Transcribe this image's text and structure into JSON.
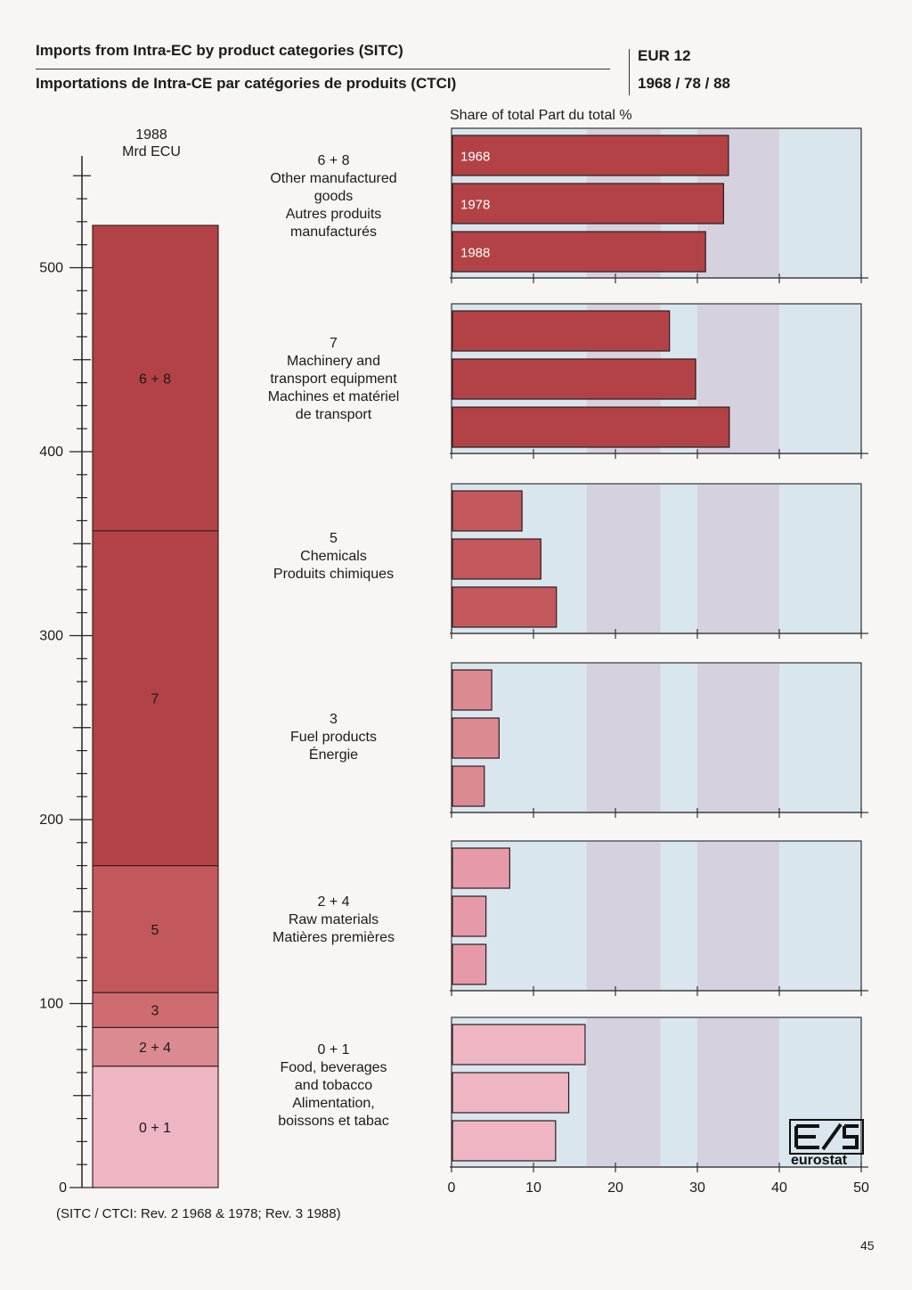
{
  "title_en": "Imports from Intra-EC by product categories (SITC)",
  "title_fr": "Importations de Intra-CE par catégories de produits (CTCI)",
  "region": "EUR 12",
  "period": "1968 / 78 / 88",
  "share_header": "Share of total  Part du total  %",
  "source_note": "(SITC / CTCI: Rev. 2  1968 & 1978; Rev. 3 1988)",
  "page_number": "45",
  "logo_text": "eurostat",
  "categories": [
    {
      "code": "6 + 8",
      "label_lines": [
        "Other manufactured",
        "goods",
        "Autres produits",
        "manufacturés"
      ]
    },
    {
      "code": "7",
      "label_lines": [
        "Machinery and",
        "transport equipment",
        "Machines et matériel",
        "de transport"
      ]
    },
    {
      "code": "5",
      "label_lines": [
        "Chemicals",
        "Produits chimiques"
      ]
    },
    {
      "code": "3",
      "label_lines": [
        "Fuel products",
        "Énergie"
      ]
    },
    {
      "code": "2 + 4",
      "label_lines": [
        "Raw materials",
        "Matières premières"
      ]
    },
    {
      "code": "0 + 1",
      "label_lines": [
        "Food, beverages",
        "and tobacco",
        "Alimentation,",
        "boissons et tabac"
      ]
    }
  ],
  "chart_data": [
    {
      "type": "bar",
      "stacked": true,
      "orientation": "vertical",
      "title": "1988",
      "ylabel": "Mrd ECU",
      "ylim": [
        0,
        600
      ],
      "yticks": [
        0,
        100,
        200,
        300,
        400,
        500
      ],
      "segments": [
        {
          "label": "0 + 1",
          "value": 66
        },
        {
          "label": "2 + 4",
          "value": 21
        },
        {
          "label": "3",
          "value": 19
        },
        {
          "label": "5",
          "value": 69
        },
        {
          "label": "7",
          "value": 182
        },
        {
          "label": "6 + 8",
          "value": 166
        }
      ]
    },
    {
      "type": "bar",
      "orientation": "horizontal",
      "xlabel": "Share of total  Part du total  %",
      "xlim": [
        0,
        50
      ],
      "xticks": [
        0,
        10,
        20,
        30,
        40,
        50
      ],
      "groups": [
        "6 + 8",
        "7",
        "5",
        "3",
        "2 + 4",
        "0 + 1"
      ],
      "series": [
        {
          "name": "1968",
          "values": [
            33.8,
            26.6,
            8.6,
            4.9,
            7.1,
            16.3
          ]
        },
        {
          "name": "1978",
          "values": [
            33.2,
            29.8,
            10.9,
            5.8,
            4.2,
            14.3
          ]
        },
        {
          "name": "1988",
          "values": [
            31.0,
            33.9,
            12.8,
            4.0,
            4.2,
            12.7
          ]
        }
      ]
    }
  ],
  "colors": {
    "dark_red": "#b34246",
    "mid_red": "#c3585c",
    "medium_red": "#cf6c72",
    "light_red": "#dc8a92",
    "pink": "#e69aa8",
    "pale_pink": "#eeb5c2",
    "panel_blue": "#d9e6ee",
    "panel_lavender": "#d6d1df"
  }
}
